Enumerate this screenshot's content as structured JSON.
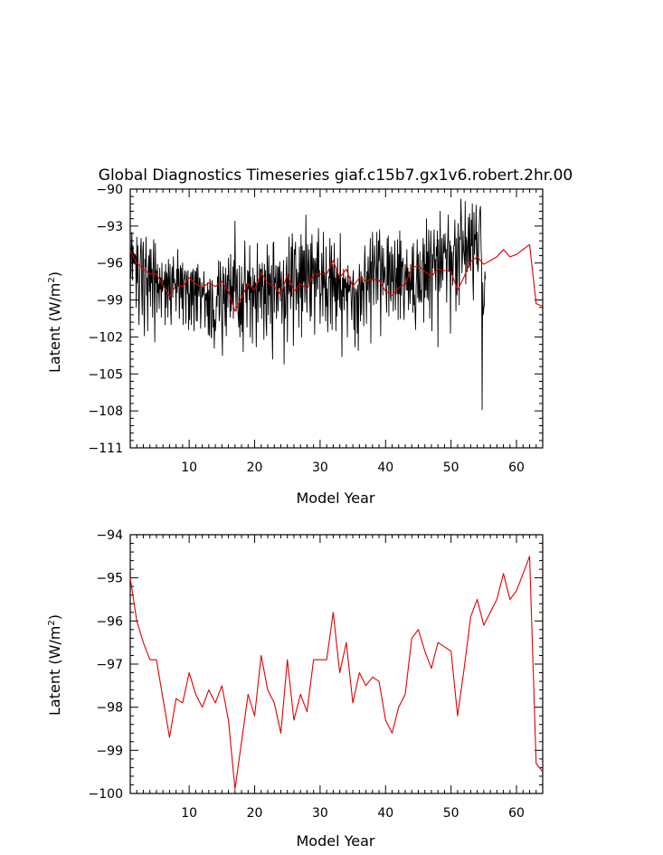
{
  "colors": {
    "monthly": "#000000",
    "annual": "#e00000",
    "axis": "#000000"
  },
  "chart_data": [
    {
      "type": "line",
      "title": "Global Diagnostics Timeseries giaf.c15b7.gx1v6.robert.2hr.00",
      "xlabel": "Model Year",
      "ylabel_main": "Latent (W/m",
      "ylabel_sup": "2",
      "ylabel_close": ")",
      "xlim": [
        1,
        64
      ],
      "ylim": [
        -111,
        -90
      ],
      "xtick_values": [
        10,
        20,
        30,
        40,
        50,
        60
      ],
      "xtick_labels": [
        "10",
        "20",
        "30",
        "40",
        "50",
        "60"
      ],
      "ytick_values": [
        -90,
        -93,
        -96,
        -99,
        -102,
        -105,
        -108,
        -111
      ],
      "ytick_labels": [
        "−90",
        "−93",
        "−96",
        "−99",
        "−102",
        "−105",
        "−108",
        "−111"
      ],
      "series": [
        {
          "name": "monthly",
          "color": "#000000",
          "start_year": 1,
          "step": 0.08333,
          "values": [
            -93.8,
            -97.2,
            -95.0,
            -93.5,
            -97.4,
            -94.6,
            -96.0,
            -95.2,
            -96.1,
            -95.3,
            -95.5,
            -99.6,
            -93.9,
            -97.6,
            -94.6,
            -97.5,
            -101.0,
            -98.0,
            -96.2,
            -94.8,
            -94.0,
            -98.5,
            -100.2,
            -95.0,
            -94.3,
            -99.5,
            -101.9,
            -95.7,
            -96.3,
            -93.9,
            -98.6,
            -97.2,
            -101.5,
            -96.3,
            -95.4,
            -98.3,
            -94.9,
            -99.5,
            -94.9,
            -97.6,
            -96.5,
            -100.4,
            -96.3,
            -94.1,
            -97.9,
            -102.4,
            -94.4,
            -97.6,
            -96.6,
            -100.0,
            -96.1,
            -98.4,
            -97.7,
            -99.7,
            -96.4,
            -98.1,
            -97.2,
            -100.4,
            -96.0,
            -98.3,
            -98.0,
            -97.4,
            -97.8,
            -96.7,
            -101.0,
            -96.1,
            -99.6,
            -96.8,
            -97.2,
            -100.4,
            -95.7,
            -97.3,
            -99.0,
            -96.1,
            -99.7,
            -101.0,
            -97.0,
            -96.3,
            -98.8,
            -95.5,
            -97.6,
            -97.3,
            -98.0,
            -97.7,
            -99.9,
            -96.5,
            -98.4,
            -94.9,
            -97.9,
            -96.5,
            -100.5,
            -98.4,
            -96.2,
            -98.8,
            -96.4,
            -99.7,
            -96.0,
            -101.0,
            -97.4,
            -97.2,
            -96.6,
            -97.5,
            -100.9,
            -96.7,
            -97.5,
            -98.5,
            -96.6,
            -101.4,
            -98.5,
            -100.6,
            -97.4,
            -96.8,
            -101.0,
            -96.7,
            -99.4,
            -96.5,
            -98.9,
            -101.5,
            -96.6,
            -98.6,
            -96.7,
            -100.7,
            -96.4,
            -100.7,
            -96.1,
            -98.1,
            -98.7,
            -97.2,
            -97.3,
            -101.3,
            -99.7,
            -97.6,
            -98.8,
            -98.0,
            -98.6,
            -96.7,
            -98.3,
            -101.2,
            -98.5,
            -99.0,
            -98.4,
            -100.3,
            -97.6,
            -101.8,
            -98.2,
            -101.9,
            -97.3,
            -97.7,
            -101.7,
            -102.1,
            -97.4,
            -98.4,
            -101.2,
            -99.8,
            -102.9,
            -100.6,
            -101.5,
            -100.8,
            -98.7,
            -99.5,
            -97.1,
            -98.6,
            -95.8,
            -100.7,
            -100.1,
            -95.9,
            -97.2,
            -99.0,
            -101.4,
            -103.5,
            -96.3,
            -99.3,
            -96.9,
            -99.0,
            -101.1,
            -96.4,
            -101.9,
            -98.0,
            -97.0,
            -99.6,
            -95.6,
            -97.4,
            -97.4,
            -100.4,
            -95.3,
            -99.9,
            -97.9,
            -99.2,
            -96.3,
            -100.5,
            -95.8,
            -98.3,
            -92.6,
            -97.7,
            -99.9,
            -97.1,
            -96.5,
            -99.5,
            -100.4,
            -101.2,
            -96.2,
            -102.0,
            -99.2,
            -101.0,
            -96.3,
            -101.6,
            -97.7,
            -103.2,
            -98.0,
            -97.3,
            -94.2,
            -97.6,
            -99.2,
            -97.7,
            -101.2,
            -96.6,
            -98.1,
            -96.7,
            -99.0,
            -94.6,
            -102.0,
            -97.1,
            -98.4,
            -97.9,
            -102.5,
            -96.4,
            -99.5,
            -98.0,
            -97.0,
            -99.7,
            -97.6,
            -102.8,
            -98.7,
            -94.4,
            -100.8,
            -97.6,
            -98.3,
            -96.1,
            -99.6,
            -96.5,
            -96.5,
            -100.5,
            -96.0,
            -97.8,
            -98.0,
            -102.2,
            -96.1,
            -99.3,
            -96.6,
            -100.8,
            -101.9,
            -94.5,
            -97.2,
            -100.2,
            -95.4,
            -98.6,
            -96.9,
            -100.9,
            -97.2,
            -96.2,
            -101.5,
            -103.8,
            -94.4,
            -94.3,
            -100.0,
            -97.2,
            -97.6,
            -96.2,
            -100.5,
            -98.8,
            -96.3,
            -99.9,
            -96.3,
            -98.0,
            -95.9,
            -99.1,
            -97.5,
            -96.7,
            -100.9,
            -99.0,
            -97.9,
            -95.8,
            -104.2,
            -97.9,
            -100.5,
            -100.1,
            -96.4,
            -95.5,
            -102.4,
            -97.1,
            -98.5,
            -93.9,
            -98.3,
            -97.8,
            -99.7,
            -94.7,
            -98.7,
            -93.6,
            -95.3,
            -102.7,
            -98.3,
            -94.9,
            -95.3,
            -94.3,
            -99.8,
            -96.5,
            -97.6,
            -99.3,
            -96.8,
            -101.2,
            -94.7,
            -97.1,
            -98.8,
            -93.7,
            -102.0,
            -94.6,
            -99.9,
            -95.0,
            -97.5,
            -95.0,
            -99.2,
            -97.2,
            -92.1,
            -98.4,
            -100.0,
            -94.5,
            -96.3,
            -97.7,
            -94.9,
            -99.0,
            -100.7,
            -94.4,
            -100.3,
            -93.7,
            -96.1,
            -97.7,
            -95.6,
            -95.8,
            -101.8,
            -96.1,
            -95.6,
            -98.7,
            -96.4,
            -94.3,
            -98.1,
            -93.2,
            -97.1,
            -96.6,
            -100.9,
            -98.5,
            -98.6,
            -95.2,
            -97.0,
            -100.3,
            -93.5,
            -98.0,
            -96.8,
            -97.8,
            -100.7,
            -94.7,
            -99.5,
            -98.1,
            -101.6,
            -98.8,
            -97.1,
            -97.2,
            -94.0,
            -100.9,
            -96.4,
            -94.6,
            -101.4,
            -96.1,
            -97.4,
            -98.7,
            -94.4,
            -99.1,
            -97.2,
            -101.5,
            -96.5,
            -100.3,
            -95.6,
            -99.0,
            -96.9,
            -97.2,
            -99.6,
            -93.6,
            -99.8,
            -98.2,
            -103.6,
            -97.2,
            -98.7,
            -96.5,
            -99.8,
            -97.3,
            -98.0,
            -97.1,
            -99.1,
            -97.6,
            -102.0,
            -96.2,
            -98.4,
            -97.8,
            -98.3,
            -97.1,
            -97.6,
            -99.1,
            -100.6,
            -98.3,
            -97.3,
            -96.6,
            -101.4,
            -98.0,
            -102.8,
            -98.9,
            -98.1,
            -98.4,
            -101.7,
            -97.8,
            -103.1,
            -98.4,
            -96.1,
            -97.9,
            -100.7,
            -96.7,
            -100.2,
            -97.1,
            -98.2,
            -97.6,
            -101.1,
            -96.8,
            -94.6,
            -97.0,
            -97.5,
            -100.9,
            -96.7,
            -98.2,
            -95.5,
            -97.4,
            -99.2,
            -96.0,
            -94.0,
            -102.5,
            -95.9,
            -97.4,
            -93.5,
            -95.8,
            -99.4,
            -96.7,
            -94.6,
            -96.2,
            -96.8,
            -99.3,
            -93.5,
            -96.7,
            -99.0,
            -94.2,
            -95.8,
            -93.3,
            -95.7,
            -101.9,
            -97.1,
            -94.6,
            -96.5,
            -98.6,
            -94.8,
            -97.6,
            -96.9,
            -96.3,
            -98.1,
            -98.3,
            -100.0,
            -94.0,
            -97.8,
            -93.8,
            -100.3,
            -95.4,
            -95.1,
            -98.8,
            -99.1,
            -94.7,
            -97.5,
            -95.3,
            -99.9,
            -97.5,
            -96.1,
            -94.2,
            -99.8,
            -97.4,
            -96.4,
            -98.5,
            -94.1,
            -100.6,
            -95.3,
            -98.5,
            -93.4,
            -100.5,
            -94.2,
            -98.6,
            -95.9,
            -96.3,
            -95.6,
            -99.5,
            -100.6,
            -97.6,
            -96.1,
            -97.0,
            -98.2,
            -94.9,
            -98.2,
            -96.4,
            -99.8,
            -96.7,
            -97.7,
            -99.3,
            -96.1,
            -98.2,
            -98.1,
            -94.7,
            -100.0,
            -94.4,
            -99.4,
            -98.6,
            -99.9,
            -101.4,
            -97.8,
            -96.9,
            -94.1,
            -98.8,
            -95.3,
            -99.2,
            -98.8,
            -95.1,
            -99.1,
            -98.2,
            -99.2,
            -95.8,
            -95.8,
            -94.0,
            -100.8,
            -94.5,
            -98.8,
            -96.1,
            -98.2,
            -92.4,
            -98.8,
            -95.1,
            -99.0,
            -93.3,
            -95.8,
            -100.5,
            -95.4,
            -93.4,
            -96.2,
            -101.5,
            -95.3,
            -96.4,
            -94.9,
            -93.3,
            -96.7,
            -95.7,
            -98.2,
            -94.7,
            -95.4,
            -93.4,
            -102.8,
            -94.1,
            -97.3,
            -98.3,
            -91.8,
            -96.4,
            -98.0,
            -94.0,
            -96.5,
            -97.4,
            -93.7,
            -95.2,
            -95.0,
            -93.6,
            -95.6,
            -94.9,
            -99.2,
            -95.1,
            -94.1,
            -92.1,
            -96.7,
            -96.6,
            -94.2,
            -101.7,
            -94.6,
            -96.9,
            -95.1,
            -97.8,
            -96.4,
            -94.6,
            -94.6,
            -92.5,
            -95.7,
            -99.9,
            -94.0,
            -98.6,
            -95.9,
            -92.8,
            -94.7,
            -99.4,
            -93.9,
            -94.1,
            -90.8,
            -92.4,
            -96.8,
            -95.6,
            -93.4,
            -94.9,
            -95.4,
            -96.1,
            -91.0,
            -97.7,
            -93.9,
            -94.3,
            -96.7,
            -94.6,
            -92.3,
            -96.3,
            -92.0,
            -96.0,
            -96.6,
            -92.5,
            -94.6,
            -91.2,
            -97.3,
            -99.0,
            -91.9,
            -95.3,
            -93.7,
            -94.1,
            -91.3,
            -96.1,
            -93.5,
            -96.7,
            -96.3,
            -94.0,
            -92.6,
            -91.7,
            -91.4,
            -94.7,
            -95.9,
            -107.9,
            -97.6,
            -100.2,
            -99.7,
            -99.4,
            -96.7,
            -97.3
          ]
        },
        {
          "name": "annual",
          "color": "#e00000",
          "start_year": 1,
          "step": 1,
          "values": [
            -95.0,
            -96.0,
            -96.5,
            -96.9,
            -96.9,
            -97.8,
            -98.7,
            -97.8,
            -97.9,
            -97.2,
            -97.7,
            -98.0,
            -97.6,
            -97.9,
            -97.5,
            -98.3,
            -99.9,
            -98.8,
            -97.7,
            -98.2,
            -96.8,
            -97.6,
            -97.9,
            -98.6,
            -96.9,
            -98.3,
            -97.7,
            -98.1,
            -96.9,
            -96.9,
            -96.9,
            -95.8,
            -97.2,
            -96.5,
            -97.9,
            -97.2,
            -97.5,
            -97.3,
            -97.4,
            -98.3,
            -98.6,
            -98.0,
            -97.7,
            -96.4,
            -96.2,
            -96.7,
            -97.1,
            -96.5,
            -96.6,
            -96.7,
            -98.2,
            -97.1,
            -95.9,
            -95.5,
            -96.1,
            -95.8,
            -95.5,
            -94.9,
            -95.5,
            -95.3,
            -94.9,
            -94.5,
            -99.3,
            -99.5
          ]
        }
      ]
    },
    {
      "type": "line",
      "title": "",
      "xlabel": "Model Year",
      "ylabel_main": "Latent (W/m",
      "ylabel_sup": "2",
      "ylabel_close": ")",
      "xlim": [
        1,
        64
      ],
      "ylim": [
        -100,
        -94
      ],
      "xtick_values": [
        10,
        20,
        30,
        40,
        50,
        60
      ],
      "xtick_labels": [
        "10",
        "20",
        "30",
        "40",
        "50",
        "60"
      ],
      "ytick_values": [
        -94,
        -95,
        -96,
        -97,
        -98,
        -99,
        -100
      ],
      "ytick_labels": [
        "−94",
        "−95",
        "−96",
        "−97",
        "−98",
        "−99",
        "−100"
      ],
      "series": [
        {
          "name": "annual",
          "color": "#e00000",
          "start_year": 1,
          "step": 1,
          "values": [
            -95.0,
            -96.0,
            -96.5,
            -96.9,
            -96.9,
            -97.8,
            -98.7,
            -97.8,
            -97.9,
            -97.2,
            -97.7,
            -98.0,
            -97.6,
            -97.9,
            -97.5,
            -98.3,
            -99.9,
            -98.8,
            -97.7,
            -98.2,
            -96.8,
            -97.6,
            -97.9,
            -98.6,
            -96.9,
            -98.3,
            -97.7,
            -98.1,
            -96.9,
            -96.9,
            -96.9,
            -95.8,
            -97.2,
            -96.5,
            -97.9,
            -97.2,
            -97.5,
            -97.3,
            -97.4,
            -98.3,
            -98.6,
            -98.0,
            -97.7,
            -96.4,
            -96.2,
            -96.7,
            -97.1,
            -96.5,
            -96.6,
            -96.7,
            -98.2,
            -97.1,
            -95.9,
            -95.5,
            -96.1,
            -95.8,
            -95.5,
            -94.9,
            -95.5,
            -95.3,
            -94.9,
            -94.5,
            -99.3,
            -99.5
          ]
        }
      ]
    }
  ]
}
